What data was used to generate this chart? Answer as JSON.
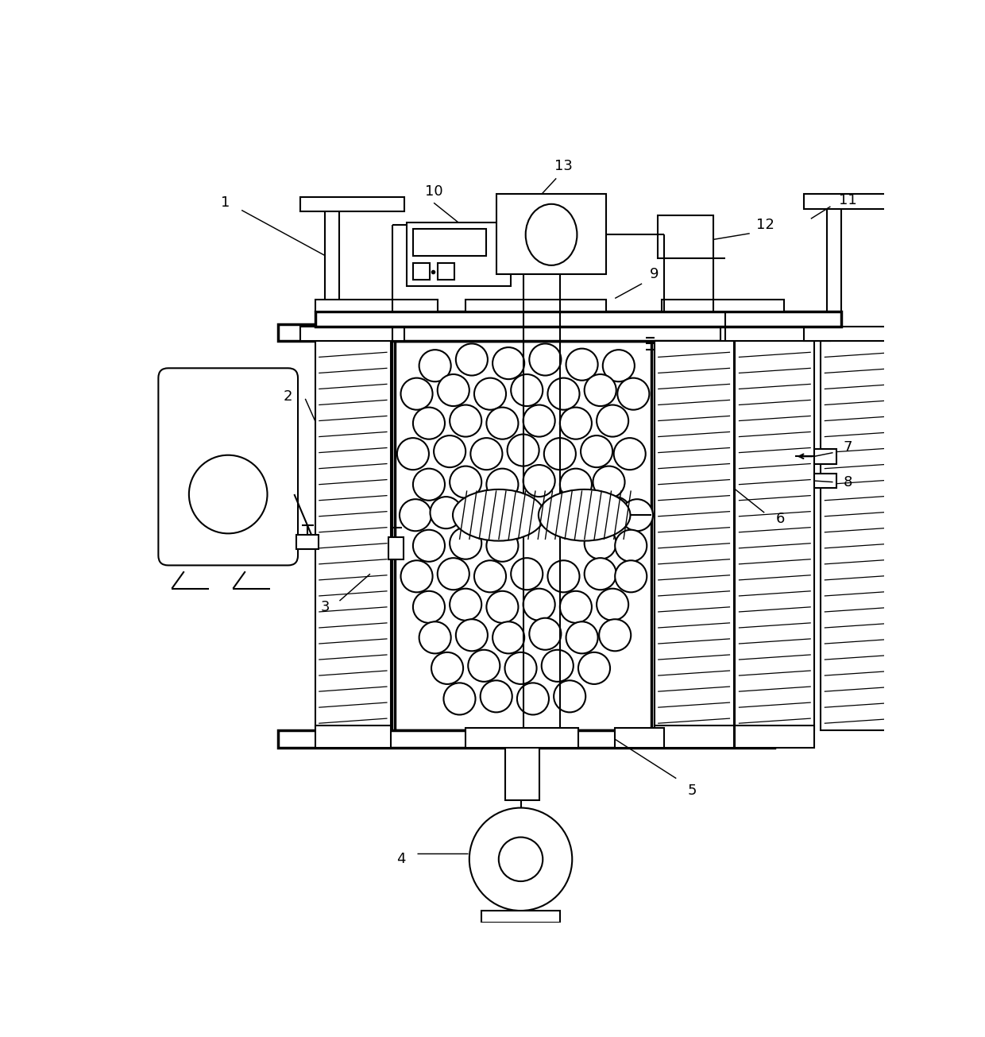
{
  "bg_color": "#ffffff",
  "lc": "#000000",
  "lw": 1.5,
  "tlw": 2.5,
  "fs": 13,
  "fig_w": 12.4,
  "fig_h": 13.05,
  "dpi": 100
}
